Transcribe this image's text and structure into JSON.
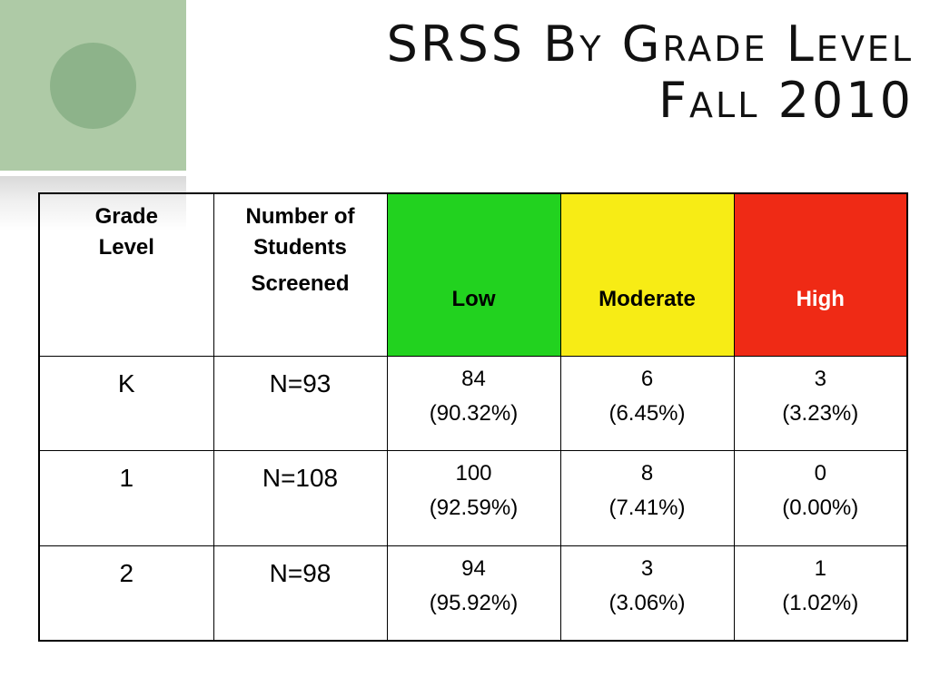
{
  "title": {
    "line1": "SRSS By Grade Level",
    "line2": "Fall 2010"
  },
  "colors": {
    "low": "#22d21f",
    "moderate": "#f7ec15",
    "high": "#ef2a15",
    "accent_green": "#aecaa6"
  },
  "table": {
    "headers": {
      "grade": [
        "Grade",
        "Level"
      ],
      "students": [
        "Number of",
        "Students",
        "Screened"
      ],
      "low": "Low",
      "moderate": "Moderate",
      "high": "High"
    },
    "rows": [
      {
        "grade": "K",
        "screened": "N=93",
        "low": {
          "count": "84",
          "pct": "(90.32%)"
        },
        "moderate": {
          "count": "6",
          "pct": "(6.45%)"
        },
        "high": {
          "count": "3",
          "pct": "(3.23%)"
        }
      },
      {
        "grade": "1",
        "screened": "N=108",
        "low": {
          "count": "100",
          "pct": "(92.59%)"
        },
        "moderate": {
          "count": "8",
          "pct": "(7.41%)"
        },
        "high": {
          "count": "0",
          "pct": "(0.00%)"
        }
      },
      {
        "grade": "2",
        "screened": "N=98",
        "low": {
          "count": "94",
          "pct": "(95.92%)"
        },
        "moderate": {
          "count": "3",
          "pct": "(3.06%)"
        },
        "high": {
          "count": "1",
          "pct": "(1.02%)"
        }
      }
    ]
  }
}
